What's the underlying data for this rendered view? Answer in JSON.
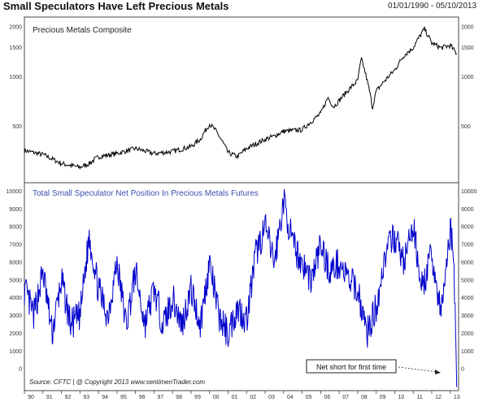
{
  "header": {
    "title": "Small Speculators Have Left Precious Metals",
    "date_range": "01/01/1990 - 05/10/2013"
  },
  "source": "Source: CFTC  |  @ Copyright 2013  www.sentimenTrader.com",
  "annotation": "Net short for first time",
  "colors": {
    "price_line": "#000000",
    "position_line": "#0000cc",
    "panel2_title": "#3a4fb0"
  },
  "chart_data": [
    {
      "type": "line",
      "title": "Precious Metals Composite",
      "scale": "log",
      "ylim": [
        230,
        2300
      ],
      "yticks": [
        500,
        1000,
        1500,
        2000
      ],
      "x": [
        1990.0,
        1991.0,
        1992.0,
        1993.0,
        1993.5,
        1994.0,
        1995.0,
        1996.0,
        1997.0,
        1998.0,
        1999.0,
        1999.5,
        2000.0,
        2000.3,
        2001.0,
        2001.5,
        2002.0,
        2003.0,
        2003.5,
        2004.0,
        2005.0,
        2006.0,
        2006.4,
        2006.7,
        2007.0,
        2008.0,
        2008.2,
        2008.8,
        2009.0,
        2010.0,
        2010.5,
        2011.0,
        2011.6,
        2012.0,
        2012.5,
        2013.0,
        2013.35
      ],
      "values": [
        360,
        340,
        300,
        285,
        300,
        330,
        345,
        370,
        345,
        355,
        380,
        420,
        520,
        480,
        350,
        330,
        370,
        420,
        440,
        470,
        480,
        600,
        750,
        660,
        720,
        950,
        1280,
        650,
        820,
        1100,
        1350,
        1500,
        1950,
        1600,
        1500,
        1550,
        1380
      ]
    },
    {
      "type": "line",
      "title": "Total Small Speculator Net Position In Precious Metals Futures",
      "ylim": [
        -1200,
        10500
      ],
      "yticks": [
        0,
        1000,
        2000,
        3000,
        4000,
        5000,
        6000,
        7000,
        8000,
        9000,
        10000
      ],
      "x_tick_labels": [
        "90",
        "91",
        "92",
        "93",
        "94",
        "95",
        "96",
        "97",
        "98",
        "99",
        "00",
        "01",
        "02",
        "03",
        "04",
        "05",
        "06",
        "07",
        "08",
        "09",
        "10",
        "11",
        "12",
        "13"
      ],
      "x": [
        1990.0,
        1990.5,
        1991.0,
        1991.5,
        1992.0,
        1992.5,
        1993.0,
        1993.5,
        1994.0,
        1994.5,
        1995.0,
        1995.5,
        1996.0,
        1996.5,
        1997.0,
        1997.5,
        1998.0,
        1998.5,
        1999.0,
        1999.5,
        2000.0,
        2000.5,
        2001.0,
        2001.5,
        2002.0,
        2002.5,
        2003.0,
        2003.5,
        2004.0,
        2004.5,
        2005.0,
        2005.5,
        2006.0,
        2006.5,
        2007.0,
        2007.5,
        2008.0,
        2008.5,
        2009.0,
        2009.5,
        2010.0,
        2010.5,
        2011.0,
        2011.5,
        2012.0,
        2012.5,
        2013.0,
        2013.2,
        2013.35
      ],
      "values": [
        4500,
        3000,
        5500,
        2000,
        5000,
        2500,
        3000,
        7500,
        4500,
        3000,
        6000,
        2500,
        5500,
        2500,
        4500,
        2500,
        4000,
        2500,
        4500,
        2500,
        6000,
        3000,
        2000,
        3500,
        2800,
        6500,
        8000,
        6000,
        9500,
        7000,
        6000,
        5000,
        7000,
        5500,
        6000,
        5000,
        4500,
        2000,
        3500,
        6500,
        7500,
        6000,
        8000,
        4500,
        6500,
        3000,
        8000,
        6000,
        -1000
      ]
    }
  ]
}
